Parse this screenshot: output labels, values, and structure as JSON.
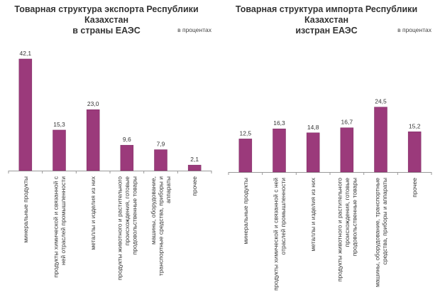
{
  "colors": {
    "bar": "#9b3a7b",
    "bar_edge": "#7a2a60",
    "axis": "#999999"
  },
  "chart_data": [
    {
      "type": "bar",
      "title_lines": [
        "Товарная структура экспорта Республики Казахстан",
        "в страны ЕАЭС"
      ],
      "unit": "в процентах",
      "categories": [
        "минеральные продукты",
        "продукты химической и связанной с ней отраслей промышленности",
        "металлы и изделия из них",
        "продукты животного и растительного происхождения, готовые продовольственные товары",
        "машины, оборудование, транспортные средства, приборы и аппараты",
        "прочее"
      ],
      "values": [
        42.1,
        15.3,
        23.0,
        9.6,
        7.9,
        2.1
      ],
      "value_labels": [
        "42,1",
        "15,3",
        "23,0",
        "9,6",
        "7,9",
        "2,1"
      ],
      "category_label_lines": [
        [
          "минеральные продукты"
        ],
        [
          "продукты химической и связанной с",
          "ней отраслей промышленности"
        ],
        [
          "металлы и изделия из них"
        ],
        [
          "продукты животного и растительного",
          "происхождения, готовые",
          "продовольственные товары"
        ],
        [
          "машины, оборудование,",
          "транспортные средства, приборы и",
          "аппараты"
        ],
        [
          "прочее"
        ]
      ]
    },
    {
      "type": "bar",
      "title_lines": [
        "Товарная структура импорта Республики Казахстан",
        "изстран ЕАЭС"
      ],
      "unit": "в процентах",
      "categories": [
        "минеральные продукты",
        "продукты химической и связанной с ней отраслей промышленности",
        "металлы и изделия из них",
        "продукты животного и растительного происхождения, готовые продовольственные товары",
        "машины, оборудование, транспортные средства, приборы и аппараты",
        "прочее"
      ],
      "values": [
        12.5,
        16.3,
        14.8,
        16.7,
        24.5,
        15.2
      ],
      "value_labels": [
        "12,5",
        "16,3",
        "14,8",
        "16,7",
        "24,5",
        "15,2"
      ],
      "category_label_lines": [
        [
          "минеральные продукты"
        ],
        [
          "продукты химической и связанной с ней",
          "отраслей промышленности"
        ],
        [
          "металлы и изделия из них"
        ],
        [
          "продукты животного и растительного",
          "происхождения, готовые",
          "продовольственные товары"
        ],
        [
          "машины, оборудование, транспортные",
          "средства, приборы и аппараты"
        ],
        [
          "прочее"
        ]
      ]
    }
  ]
}
